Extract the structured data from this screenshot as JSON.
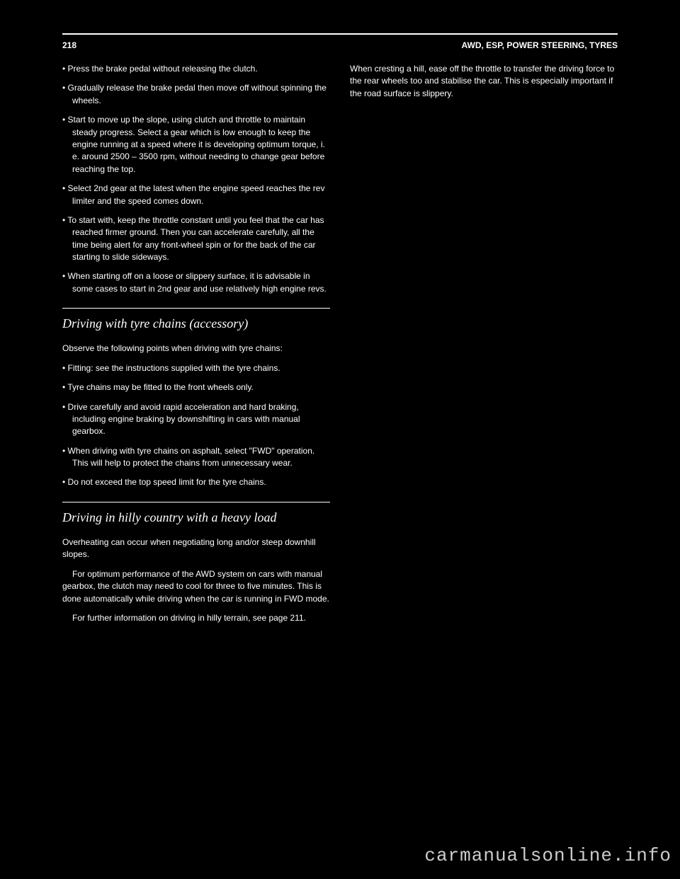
{
  "header": {
    "pageNumber": "218",
    "sectionText": "AWD, ESP, POWER STEERING, TYRES"
  },
  "body": {
    "listItems": [
      "• Press the brake pedal without releasing the clutch.",
      "• Gradually release the brake pedal then move off without spinning the wheels.",
      "• Start to move up the slope, using clutch and throttle to maintain steady progress. Select a gear which is low enough to keep the engine running at a speed where it is developing optimum torque, i. e. around 2500 – 3500 rpm, without needing to change gear before reaching the top.",
      "• Select 2nd gear at the latest when the engine speed reaches the rev limiter and the speed comes down.",
      "• To start with, keep the throttle constant until you feel that the car has reached firmer ground. Then you can accelerate carefully, all the time being alert for any front-wheel spin or for the back of the car starting to slide sideways.",
      "• When starting off on a loose or slippery surface, it is advisable in some cases to start in 2nd gear and use relatively high engine revs."
    ],
    "section1": {
      "heading": "Driving with tyre chains (accessory)",
      "lead": "Observe the following points when driving with tyre chains:",
      "items": [
        "• Fitting: see the instructions supplied with the tyre chains.",
        "• Tyre chains may be fitted to the front wheels only.",
        "• Drive carefully and avoid rapid acceleration and hard braking, including engine braking by downshifting in cars with manual gearbox.",
        "• When driving with tyre chains on asphalt, select \"FWD\" operation. This will help to protect the chains from unnecessary wear.",
        "• Do not exceed the top speed limit for the tyre chains."
      ]
    },
    "section2": {
      "heading": "Driving in hilly country with a heavy load",
      "paraLead": "Overheating can occur when negotiating long and/or steep downhill slopes.",
      "para2": "For optimum performance of the AWD system on cars with manual gearbox, the clutch may need to cool for three to five minutes. This is done automatically while driving when the car is running in FWD mode.",
      "para3": "For further information on driving in hilly terrain, see page 211."
    },
    "rightCol": {
      "para1": "When cresting a hill, ease off the throttle to transfer the driving force to the rear wheels too and stabilise the car. This is especially important if the road surface is slippery."
    }
  },
  "watermark": "carmanualsonline.info"
}
